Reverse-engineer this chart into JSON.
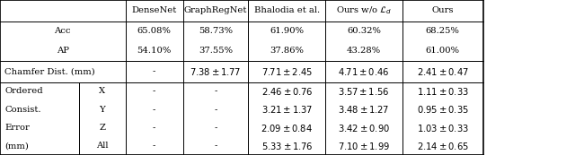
{
  "figsize": [
    6.4,
    1.73
  ],
  "dpi": 100,
  "background": "#ffffff",
  "line_color": "#000000",
  "font_size": 7.2,
  "col_bounds": [
    0.0,
    0.138,
    0.218,
    0.318,
    0.432,
    0.566,
    0.7,
    0.84,
    1.0
  ],
  "row_bounds": [
    1.0,
    0.862,
    0.735,
    0.607,
    0.47,
    0.352,
    0.234,
    0.117,
    0.0
  ],
  "headers": [
    "DenseNet",
    "GraphRegNet",
    "Bhalodia et al.",
    "Ours w/o $\\mathcal{L}_d$",
    "Ours"
  ],
  "acc_vals": [
    "65.08%",
    "58.73%",
    "61.90%",
    "60.32%",
    "68.25%"
  ],
  "ap_vals": [
    "54.10%",
    "37.55%",
    "37.86%",
    "43.28%",
    "61.00%"
  ],
  "chamfer_vals": [
    "-",
    "$7.38 \\pm 1.77$",
    "$7.71 \\pm 2.45$",
    "$4.71 \\pm 0.46$",
    "$2.41 \\pm 0.47$"
  ],
  "left1_labels": [
    "Ordered",
    "Consist.",
    "Error",
    "(mm)"
  ],
  "left2_labels": [
    "X",
    "Y",
    "Z",
    "All"
  ],
  "xyz_vals": [
    [
      "-",
      "-",
      "$2.46 \\pm 0.76$",
      "$3.57 \\pm 1.56$",
      "$1.11 \\pm 0.33$"
    ],
    [
      "-",
      "-",
      "$3.21 \\pm 1.37$",
      "$3.48 \\pm 1.27$",
      "$0.95 \\pm 0.35$"
    ],
    [
      "-",
      "-",
      "$2.09 \\pm 0.84$",
      "$3.42 \\pm 0.90$",
      "$1.03 \\pm 0.33$"
    ],
    [
      "-",
      "-",
      "$5.33 \\pm 1.76$",
      "$7.10 \\pm 1.99$",
      "$2.14 \\pm 0.65$"
    ]
  ],
  "lw_thick": 1.2,
  "lw_thin": 0.7
}
